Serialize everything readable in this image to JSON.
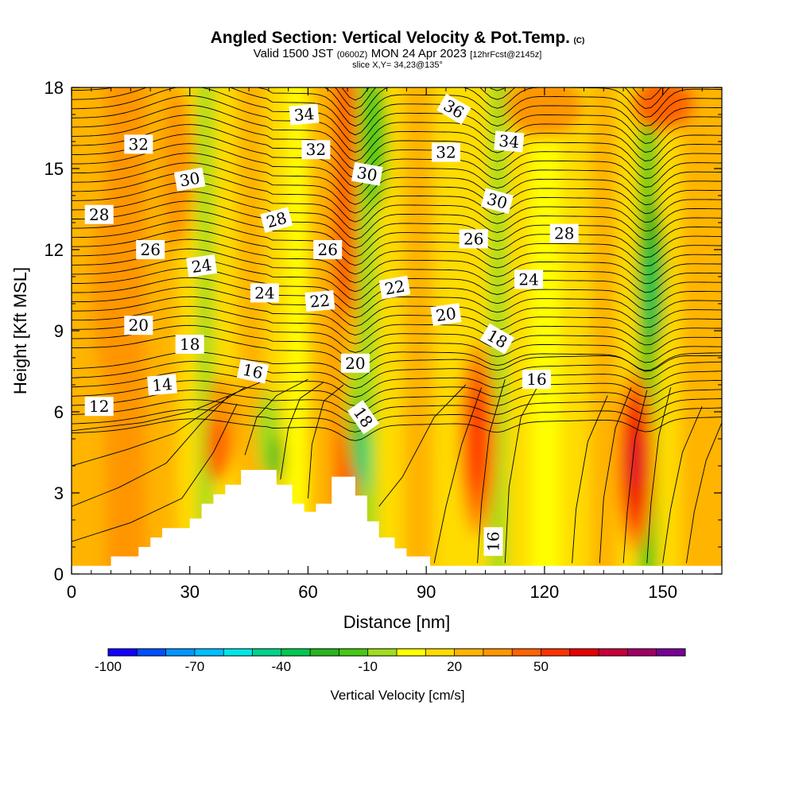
{
  "title": {
    "main": "Angled Section: Vertical Velocity & Pot.Temp.",
    "main_suffix": "(C)",
    "valid_prefix": "Valid 1500 JST",
    "valid_utc": "(0600Z)",
    "valid_date": "MON 24 Apr 2023",
    "forecast": "[12hrFcst@2145z]",
    "slice": "slice X,Y= 34,23@135°"
  },
  "chart_data": {
    "type": "heatmap",
    "xlabel": "Distance [nm]",
    "ylabel": "Height [Kft MSL]",
    "xlim": [
      0,
      165
    ],
    "ylim": [
      0,
      18
    ],
    "x_ticks": [
      {
        "value": 0,
        "label": "0"
      },
      {
        "value": 30,
        "label": "30"
      },
      {
        "value": 60,
        "label": "60"
      },
      {
        "value": 90,
        "label": "90"
      },
      {
        "value": 120,
        "label": "120"
      },
      {
        "value": 150,
        "label": "150"
      }
    ],
    "y_ticks": [
      {
        "value": 0,
        "label": "0"
      },
      {
        "value": 3,
        "label": "3"
      },
      {
        "value": 6,
        "label": "6"
      },
      {
        "value": 9,
        "label": "9"
      },
      {
        "value": 12,
        "label": "12"
      },
      {
        "value": 15,
        "label": "15"
      },
      {
        "value": 18,
        "label": "18"
      }
    ],
    "colorbar": {
      "label": "Vertical Velocity [cm/s]",
      "bins": [
        {
          "color": "#1400ff"
        },
        {
          "color": "#0050ff"
        },
        {
          "color": "#0096ff"
        },
        {
          "color": "#00beff"
        },
        {
          "color": "#00e6e6"
        },
        {
          "color": "#00d28c"
        },
        {
          "color": "#00c850"
        },
        {
          "color": "#28b41e"
        },
        {
          "color": "#46c814"
        },
        {
          "color": "#a0dc1e"
        },
        {
          "color": "#ffff00"
        },
        {
          "color": "#ffdc00"
        },
        {
          "color": "#ffb400"
        },
        {
          "color": "#ff9600"
        },
        {
          "color": "#ff6400"
        },
        {
          "color": "#ff3200"
        },
        {
          "color": "#e60000"
        },
        {
          "color": "#c8003c"
        },
        {
          "color": "#a00064"
        },
        {
          "color": "#780096"
        }
      ],
      "tick_labels": [
        {
          "bin_index": 0,
          "label": "-100"
        },
        {
          "bin_index": 3,
          "label": "-70"
        },
        {
          "bin_index": 6,
          "label": "-40"
        },
        {
          "bin_index": 9,
          "label": "-10"
        },
        {
          "bin_index": 12,
          "label": "20"
        },
        {
          "bin_index": 15,
          "label": "50"
        }
      ]
    },
    "bands": [
      {
        "x": 3,
        "color": "#ffb400"
      },
      {
        "x": 14,
        "color": "#ff9600"
      },
      {
        "x": 24,
        "color": "#ffb400"
      },
      {
        "x": 30,
        "color": "#ffdc00"
      },
      {
        "x": 34,
        "color": "#a0dc1e"
      },
      {
        "x": 38,
        "color": "#ffdc00"
      },
      {
        "x": 46,
        "color": "#ffb400"
      },
      {
        "x": 53,
        "color": "#ffdc00"
      },
      {
        "x": 57,
        "color": "#ffff00"
      },
      {
        "x": 63,
        "color": "#ffb400"
      },
      {
        "x": 70,
        "color": "#ff6400"
      },
      {
        "x": 75,
        "color": "#a0dc1e"
      },
      {
        "x": 80,
        "color": "#ffdc00"
      },
      {
        "x": 88,
        "color": "#ffb400"
      },
      {
        "x": 96,
        "color": "#ffdc00"
      },
      {
        "x": 104,
        "color": "#ffdc00"
      },
      {
        "x": 108,
        "color": "#a0dc1e"
      },
      {
        "x": 113,
        "color": "#ffdc00"
      },
      {
        "x": 120,
        "color": "#ffff00"
      },
      {
        "x": 128,
        "color": "#ffdc00"
      },
      {
        "x": 135,
        "color": "#ffb400"
      },
      {
        "x": 142,
        "color": "#ffdc00"
      },
      {
        "x": 146,
        "color": "#46c814"
      },
      {
        "x": 151,
        "color": "#ffdc00"
      },
      {
        "x": 158,
        "color": "#ffb400"
      }
    ],
    "features": [
      {
        "x": 12,
        "y": 10.5,
        "rx": 7,
        "ry": 4,
        "color": "#ff9600"
      },
      {
        "x": 27,
        "y": 15,
        "rx": 4,
        "ry": 3,
        "color": "#ff9600"
      },
      {
        "x": 38,
        "y": 5.5,
        "rx": 4,
        "ry": 1.8,
        "color": "#ff9600"
      },
      {
        "x": 37,
        "y": 4.6,
        "rx": 3,
        "ry": 1.2,
        "color": "#ff6400"
      },
      {
        "x": 50,
        "y": 5.2,
        "rx": 3,
        "ry": 1.6,
        "color": "#a0dc1e"
      },
      {
        "x": 52,
        "y": 4.3,
        "rx": 1.6,
        "ry": 0.9,
        "color": "#28b41e"
      },
      {
        "x": 69,
        "y": 12.5,
        "rx": 3,
        "ry": 4,
        "color": "#ff6400"
      },
      {
        "x": 70,
        "y": 7.5,
        "rx": 2.5,
        "ry": 2.5,
        "color": "#ffb400"
      },
      {
        "x": 72,
        "y": 6,
        "rx": 2.2,
        "ry": 2.2,
        "color": "#a0dc1e"
      },
      {
        "x": 73,
        "y": 5,
        "rx": 1.6,
        "ry": 1.6,
        "color": "#28b41e"
      },
      {
        "x": 74,
        "y": 4.2,
        "rx": 1.1,
        "ry": 1.2,
        "color": "#00d28c"
      },
      {
        "x": 77,
        "y": 16,
        "rx": 3,
        "ry": 2.5,
        "color": "#46c814"
      },
      {
        "x": 103,
        "y": 5,
        "rx": 5,
        "ry": 3.6,
        "color": "#ff9600"
      },
      {
        "x": 103,
        "y": 5,
        "rx": 3.4,
        "ry": 2.8,
        "color": "#ff6400"
      },
      {
        "x": 103,
        "y": 5,
        "rx": 2,
        "ry": 2,
        "color": "#ff3200"
      },
      {
        "x": 120,
        "y": 17.3,
        "rx": 10,
        "ry": 1.2,
        "color": "#ff9600"
      },
      {
        "x": 143,
        "y": 4.2,
        "rx": 5,
        "ry": 3.4,
        "color": "#ff9600"
      },
      {
        "x": 143,
        "y": 4.2,
        "rx": 3.4,
        "ry": 2.8,
        "color": "#ff3200"
      },
      {
        "x": 143,
        "y": 4.2,
        "rx": 2,
        "ry": 2,
        "color": "#e60000"
      },
      {
        "x": 143,
        "y": 4.2,
        "rx": 0.8,
        "ry": 1,
        "color": "#c8003c"
      },
      {
        "x": 147,
        "y": 11,
        "rx": 3.5,
        "ry": 3,
        "color": "#28b41e"
      },
      {
        "x": 147,
        "y": 10.5,
        "rx": 1.7,
        "ry": 1.8,
        "color": "#00c850"
      },
      {
        "x": 150,
        "y": 17.4,
        "rx": 8,
        "ry": 1,
        "color": "#ff6400"
      }
    ],
    "terrain": [
      [
        0,
        0.3
      ],
      [
        10,
        0.3
      ],
      [
        10,
        0.65
      ],
      [
        17,
        0.65
      ],
      [
        17,
        1.0
      ],
      [
        20,
        1.0
      ],
      [
        20,
        1.35
      ],
      [
        23,
        1.35
      ],
      [
        23,
        1.7
      ],
      [
        30,
        1.7
      ],
      [
        30,
        2.05
      ],
      [
        33,
        2.05
      ],
      [
        33,
        2.6
      ],
      [
        36,
        2.6
      ],
      [
        36,
        2.95
      ],
      [
        39,
        2.95
      ],
      [
        39,
        3.3
      ],
      [
        43,
        3.3
      ],
      [
        43,
        3.85
      ],
      [
        52,
        3.85
      ],
      [
        52,
        3.3
      ],
      [
        56,
        3.3
      ],
      [
        56,
        2.6
      ],
      [
        59,
        2.6
      ],
      [
        59,
        2.3
      ],
      [
        62,
        2.3
      ],
      [
        62,
        2.6
      ],
      [
        66,
        2.6
      ],
      [
        66,
        3.6
      ],
      [
        72,
        3.6
      ],
      [
        72,
        2.9
      ],
      [
        75,
        2.9
      ],
      [
        75,
        1.95
      ],
      [
        78,
        1.95
      ],
      [
        78,
        1.35
      ],
      [
        82,
        1.35
      ],
      [
        82,
        0.95
      ],
      [
        85,
        0.95
      ],
      [
        85,
        0.65
      ],
      [
        91,
        0.65
      ],
      [
        91,
        0.3
      ],
      [
        165,
        0.3
      ]
    ],
    "contour_labels": [
      {
        "text": "12",
        "x": 7,
        "y": 6.2,
        "angle": 0
      },
      {
        "text": "14",
        "x": 23,
        "y": 7.0,
        "angle": -5
      },
      {
        "text": "16",
        "x": 46,
        "y": 7.5,
        "angle": 12
      },
      {
        "text": "16",
        "x": 107,
        "y": 1.2,
        "angle": -90
      },
      {
        "text": "16",
        "x": 118,
        "y": 7.2,
        "angle": 0
      },
      {
        "text": "18",
        "x": 30,
        "y": 8.5,
        "angle": 0
      },
      {
        "text": "18",
        "x": 74,
        "y": 5.8,
        "angle": 55
      },
      {
        "text": "18",
        "x": 108,
        "y": 8.7,
        "angle": 30
      },
      {
        "text": "20",
        "x": 17,
        "y": 9.2,
        "angle": 0
      },
      {
        "text": "20",
        "x": 72,
        "y": 7.8,
        "angle": 0
      },
      {
        "text": "20",
        "x": 95,
        "y": 9.6,
        "angle": -8
      },
      {
        "text": "22",
        "x": 63,
        "y": 10.1,
        "angle": -5
      },
      {
        "text": "22",
        "x": 82,
        "y": 10.6,
        "angle": -10
      },
      {
        "text": "24",
        "x": 33,
        "y": 11.4,
        "angle": -8
      },
      {
        "text": "24",
        "x": 49,
        "y": 10.4,
        "angle": 0
      },
      {
        "text": "24",
        "x": 116,
        "y": 10.9,
        "angle": 0
      },
      {
        "text": "26",
        "x": 20,
        "y": 12.0,
        "angle": 0
      },
      {
        "text": "26",
        "x": 65,
        "y": 12.0,
        "angle": 0
      },
      {
        "text": "26",
        "x": 102,
        "y": 12.4,
        "angle": 0
      },
      {
        "text": "28",
        "x": 7,
        "y": 13.3,
        "angle": 0
      },
      {
        "text": "28",
        "x": 52,
        "y": 13.1,
        "angle": -15
      },
      {
        "text": "28",
        "x": 125,
        "y": 12.6,
        "angle": 0
      },
      {
        "text": "30",
        "x": 30,
        "y": 14.6,
        "angle": -10
      },
      {
        "text": "30",
        "x": 75,
        "y": 14.8,
        "angle": 10
      },
      {
        "text": "30",
        "x": 108,
        "y": 13.8,
        "angle": 15
      },
      {
        "text": "32",
        "x": 17,
        "y": 15.9,
        "angle": 0
      },
      {
        "text": "32",
        "x": 62,
        "y": 15.7,
        "angle": 0
      },
      {
        "text": "32",
        "x": 95,
        "y": 15.6,
        "angle": 0
      },
      {
        "text": "34",
        "x": 59,
        "y": 17.0,
        "angle": -5
      },
      {
        "text": "34",
        "x": 111,
        "y": 16.0,
        "angle": 5
      },
      {
        "text": "36",
        "x": 97,
        "y": 17.2,
        "angle": 30
      }
    ]
  }
}
